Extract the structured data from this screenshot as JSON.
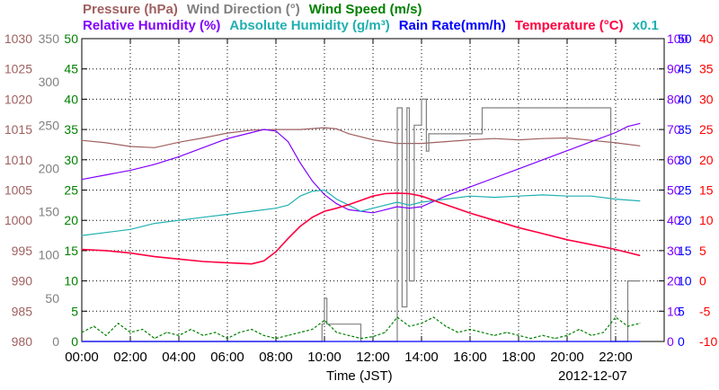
{
  "chart_data": {
    "type": "line",
    "date": "2012-12-07",
    "xlabel": "Time (JST)",
    "x_ticks": [
      "00:00",
      "02:00",
      "04:00",
      "06:00",
      "08:00",
      "10:00",
      "12:00",
      "14:00",
      "16:00",
      "18:00",
      "20:00",
      "22:00"
    ],
    "xlim": [
      0,
      24
    ],
    "x_unit": "hours",
    "grid": true,
    "legend": {
      "row1": [
        {
          "label": "Pressure (hPa)",
          "color": "#a06060"
        },
        {
          "label": "Wind Direction (°)",
          "color": "#808080"
        },
        {
          "label": "Wind Speed (m/s)",
          "color": "#008000"
        }
      ],
      "row2": [
        {
          "label": "Relative Humidity (%)",
          "color": "#8000ff"
        },
        {
          "label": "Absolute Humidity (g/m³)",
          "color": "#20b0b0"
        },
        {
          "label": "Rain Rate(mm/h)",
          "color": "#0000ff"
        },
        {
          "label": "Temperature (°C)",
          "color": "#ff0040"
        },
        {
          "label": "x0.1",
          "color": "#20b0b0"
        }
      ]
    },
    "axes": [
      {
        "name": "pressure",
        "side": "left",
        "ticks": [
          "1030",
          "1025",
          "1020",
          "1015",
          "1010",
          "1005",
          "1000",
          "995",
          "990",
          "985",
          "980"
        ],
        "ylim": [
          980,
          1030
        ],
        "color": "#a06060"
      },
      {
        "name": "wind-direction",
        "side": "left",
        "ticks": [
          "350",
          "300",
          "250",
          "200",
          "150",
          "100",
          "50",
          "0"
        ],
        "ylim": [
          0,
          350
        ],
        "color": "#808080"
      },
      {
        "name": "wind-speed",
        "side": "left",
        "ticks": [
          "50",
          "45",
          "40",
          "35",
          "30",
          "25",
          "20",
          "15",
          "10",
          "5",
          "0"
        ],
        "ylim": [
          0,
          50
        ],
        "color": "#008000"
      },
      {
        "name": "humidity",
        "side": "right",
        "ticks": [
          "100",
          "90",
          "80",
          "70",
          "60",
          "50",
          "40",
          "30",
          "20",
          "10",
          "0"
        ],
        "ylim": [
          0,
          100
        ],
        "color": "#8000ff"
      },
      {
        "name": "rain-rate",
        "side": "right",
        "ticks": [
          "50",
          "45",
          "40",
          "35",
          "30",
          "25",
          "20",
          "15",
          "10",
          "5",
          "0"
        ],
        "ylim": [
          0,
          50
        ],
        "color": "#0000ff"
      },
      {
        "name": "temperature",
        "side": "right",
        "ticks": [
          "40",
          "35",
          "30",
          "25",
          "20",
          "15",
          "10",
          "5",
          "0",
          "-5",
          "-10"
        ],
        "ylim": [
          -10,
          40
        ],
        "color": "#ff0000"
      }
    ],
    "series": [
      {
        "name": "Pressure (hPa)",
        "axis": "pressure",
        "color": "#a06060",
        "x": [
          0,
          1,
          2,
          3,
          4,
          5,
          6,
          7,
          8,
          9,
          10,
          10.5,
          11,
          12,
          13,
          14,
          15,
          16,
          17,
          18,
          19,
          20,
          21,
          22,
          23
        ],
        "y": [
          1013.2,
          1012.8,
          1012.2,
          1012.0,
          1012.9,
          1013.6,
          1014.4,
          1014.9,
          1015.0,
          1015.0,
          1015.3,
          1015.1,
          1014.3,
          1013.3,
          1012.7,
          1012.7,
          1013.0,
          1013.3,
          1013.5,
          1013.3,
          1013.5,
          1013.6,
          1013.2,
          1012.8,
          1012.3
        ]
      },
      {
        "name": "Wind Direction (°)",
        "axis": "wind-direction",
        "color": "#808080",
        "step": true,
        "x": [
          0,
          9.0,
          9.9,
          10.0,
          10.1,
          11.5,
          12.0,
          12.9,
          13.0,
          13.2,
          13.4,
          13.5,
          13.7,
          14.0,
          14.2,
          14.3,
          15.4,
          15.5,
          16.5,
          17.3,
          18.0,
          19.0,
          20.0,
          21.0,
          21.7,
          21.8,
          22.0,
          22.5,
          23.0
        ],
        "y": [
          0,
          0,
          20,
          50,
          20,
          0,
          0,
          0,
          270,
          40,
          270,
          70,
          250,
          280,
          220,
          240,
          240,
          240,
          270,
          270,
          270,
          270,
          270,
          270,
          270,
          0,
          0,
          70,
          70
        ]
      },
      {
        "name": "Wind Speed (m/s)",
        "axis": "wind-speed",
        "color": "#008000",
        "dashed": true,
        "x": [
          0,
          0.5,
          1,
          1.5,
          2,
          2.5,
          3,
          3.5,
          4,
          4.5,
          5,
          5.5,
          6,
          6.5,
          7,
          7.5,
          8,
          8.5,
          9,
          9.5,
          10,
          10.5,
          11,
          11.5,
          12,
          12.5,
          13,
          13.5,
          14,
          14.5,
          15,
          15.5,
          16,
          16.5,
          17,
          17.5,
          18,
          18.5,
          19,
          19.5,
          20,
          20.5,
          21,
          21.5,
          22,
          22.5,
          23
        ],
        "y": [
          1.5,
          2.5,
          1.0,
          3.0,
          1.5,
          2.0,
          0.5,
          1.5,
          1.0,
          2.0,
          1.0,
          1.5,
          0.5,
          1.5,
          2.0,
          1.0,
          0.5,
          1.0,
          1.5,
          2.0,
          3.5,
          1.5,
          1.0,
          0.5,
          0.8,
          1.5,
          4.0,
          2.5,
          3.0,
          4.0,
          2.5,
          1.5,
          2.0,
          1.5,
          1.0,
          1.5,
          1.0,
          0.5,
          1.0,
          0.5,
          1.0,
          2.0,
          1.0,
          1.5,
          4.0,
          2.5,
          3.0
        ]
      },
      {
        "name": "Relative Humidity (%)",
        "axis": "humidity",
        "color": "#8000ff",
        "x": [
          0,
          1,
          2,
          3,
          4,
          5,
          6,
          7,
          7.5,
          8,
          8.5,
          9,
          9.5,
          10,
          10.5,
          11,
          12,
          12.5,
          13,
          13.5,
          14,
          15,
          16,
          17,
          18,
          19,
          20,
          21,
          22,
          22.5,
          23
        ],
        "y": [
          53.5,
          55.0,
          56.5,
          58.5,
          61.0,
          64.0,
          67.0,
          69.0,
          70.0,
          69.5,
          66.0,
          59.0,
          53.0,
          48.5,
          45.5,
          43.5,
          42.5,
          43.5,
          44.5,
          44.0,
          44.5,
          48.0,
          51.0,
          54.0,
          57.0,
          60.0,
          63.0,
          66.0,
          69.0,
          71.0,
          72.0
        ]
      },
      {
        "name": "Absolute Humidity (g/m³)",
        "axis": "wind-speed",
        "scale_note": "x0.1",
        "color": "#20b0b0",
        "x": [
          0,
          1,
          2,
          3,
          4,
          5,
          6,
          7,
          8,
          8.5,
          9,
          9.5,
          10,
          10.5,
          11,
          11.5,
          12,
          12.5,
          13,
          13.5,
          14,
          15,
          16,
          17,
          18,
          19,
          20,
          21,
          22,
          23
        ],
        "y": [
          17.5,
          18.0,
          18.5,
          19.5,
          20.0,
          20.5,
          21.0,
          21.5,
          22.0,
          22.5,
          24.0,
          24.8,
          25.0,
          23.5,
          22.5,
          21.5,
          22.0,
          22.5,
          23.0,
          22.5,
          23.0,
          23.5,
          24.0,
          23.8,
          24.0,
          24.2,
          24.0,
          24.0,
          23.5,
          23.2
        ]
      },
      {
        "name": "Rain Rate(mm/h)",
        "axis": "rain-rate",
        "color": "#0000ff",
        "x": [
          0,
          23
        ],
        "y": [
          0,
          0
        ]
      },
      {
        "name": "Temperature (°C)",
        "axis": "temperature",
        "color": "#ff0040",
        "x": [
          0,
          1,
          2,
          3,
          4,
          5,
          6,
          7,
          7.5,
          8,
          8.5,
          9,
          9.5,
          10,
          10.5,
          11,
          11.5,
          12,
          12.5,
          13,
          13.5,
          14,
          15,
          16,
          17,
          18,
          19,
          20,
          21,
          22,
          23
        ],
        "y": [
          5.2,
          5.0,
          4.6,
          4.0,
          3.6,
          3.2,
          3.0,
          2.8,
          3.3,
          4.8,
          7.0,
          9.0,
          10.5,
          11.5,
          12.0,
          12.6,
          13.3,
          14.0,
          14.4,
          14.5,
          14.4,
          14.0,
          12.6,
          11.2,
          10.0,
          8.8,
          7.8,
          6.8,
          6.0,
          5.2,
          4.2
        ]
      }
    ]
  }
}
